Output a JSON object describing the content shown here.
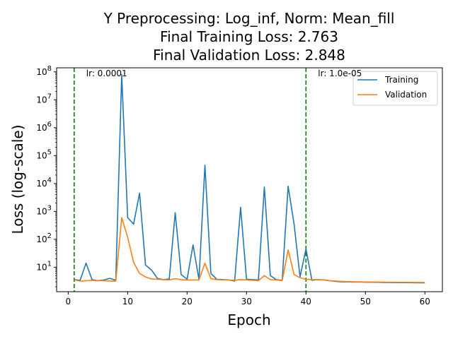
{
  "chart_data": {
    "type": "line",
    "title": [
      "Y Preprocessing: Log_inf, Norm: Mean_fill",
      "Final Training Loss: 2.763",
      "Final Validation Loss: 2.848"
    ],
    "xlabel": "Epoch",
    "ylabel": "Loss (log-scale)",
    "xlim": [
      -1.95,
      62.95
    ],
    "ylim": [
      1.33,
      140000000
    ],
    "yscale": "log",
    "grid": false,
    "legend_position": "top-right",
    "x_ticks": [
      0,
      10,
      20,
      30,
      40,
      50,
      60
    ],
    "y_ticks": [
      {
        "value": 10,
        "base": "10",
        "exp": "1"
      },
      {
        "value": 100,
        "base": "10",
        "exp": "2"
      },
      {
        "value": 1000,
        "base": "10",
        "exp": "3"
      },
      {
        "value": 10000,
        "base": "10",
        "exp": "4"
      },
      {
        "value": 100000,
        "base": "10",
        "exp": "5"
      },
      {
        "value": 1000000,
        "base": "10",
        "exp": "6"
      },
      {
        "value": 10000000,
        "base": "10",
        "exp": "7"
      },
      {
        "value": 100000000,
        "base": "10",
        "exp": "8"
      }
    ],
    "annotations": [
      {
        "x": 1,
        "label": "lr: 0.0001",
        "color": "#008000"
      },
      {
        "x": 40,
        "label": "lr: 1.0e-05",
        "color": "#008000"
      }
    ],
    "series": [
      {
        "name": "Training",
        "color": "#1f77b4",
        "x": [
          1,
          2,
          3,
          4,
          5,
          6,
          7,
          8,
          9,
          10,
          11,
          12,
          13,
          14,
          15,
          16,
          17,
          18,
          19,
          20,
          21,
          22,
          23,
          24,
          25,
          26,
          27,
          28,
          29,
          30,
          31,
          32,
          33,
          34,
          35,
          36,
          37,
          38,
          39,
          40,
          41,
          42,
          43,
          44,
          45,
          46,
          47,
          48,
          49,
          50,
          51,
          52,
          53,
          54,
          55,
          56,
          57,
          58,
          59,
          60
        ],
        "y": [
          3.6,
          3.4,
          14,
          3.6,
          3.3,
          3.5,
          4.0,
          3.4,
          80000000,
          600,
          350,
          4500,
          12,
          8,
          4,
          3.6,
          3.8,
          900,
          5.5,
          3.7,
          63,
          3.6,
          45000,
          6,
          3.7,
          3.6,
          3.5,
          3.2,
          1400,
          3.7,
          3.6,
          3.5,
          7500,
          5,
          3.6,
          3.4,
          8000,
          350,
          4.5,
          45,
          3.4,
          3.6,
          3.5,
          3.3,
          3.1,
          3.0,
          3.0,
          2.95,
          2.95,
          2.9,
          2.9,
          2.88,
          2.85,
          2.83,
          2.82,
          2.8,
          2.8,
          2.78,
          2.77,
          2.763
        ]
      },
      {
        "name": "Validation",
        "color": "#ff7f0e",
        "x": [
          1,
          2,
          3,
          4,
          5,
          6,
          7,
          8,
          9,
          10,
          11,
          12,
          13,
          14,
          15,
          16,
          17,
          18,
          19,
          20,
          21,
          22,
          23,
          24,
          25,
          26,
          27,
          28,
          29,
          30,
          31,
          32,
          33,
          34,
          35,
          36,
          37,
          38,
          39,
          40,
          41,
          42,
          43,
          44,
          45,
          46,
          47,
          48,
          49,
          50,
          51,
          52,
          53,
          54,
          55,
          56,
          57,
          58,
          59,
          60
        ],
        "y": [
          3.5,
          3.2,
          3.3,
          3.4,
          3.3,
          3.3,
          3.2,
          3.2,
          600,
          120,
          15,
          6,
          4.5,
          3.8,
          3.7,
          3.6,
          3.5,
          3.9,
          3.6,
          3.5,
          3.5,
          3.5,
          14,
          3.9,
          3.6,
          3.5,
          3.5,
          3.4,
          3.6,
          3.5,
          3.4,
          3.3,
          5,
          3.6,
          3.5,
          3.3,
          42,
          5.5,
          4.2,
          3.7,
          3.6,
          3.6,
          3.5,
          3.3,
          3.2,
          3.1,
          3.05,
          3.0,
          3.0,
          2.98,
          2.95,
          2.95,
          2.92,
          2.9,
          2.9,
          2.88,
          2.88,
          2.86,
          2.85,
          2.848
        ]
      }
    ]
  }
}
